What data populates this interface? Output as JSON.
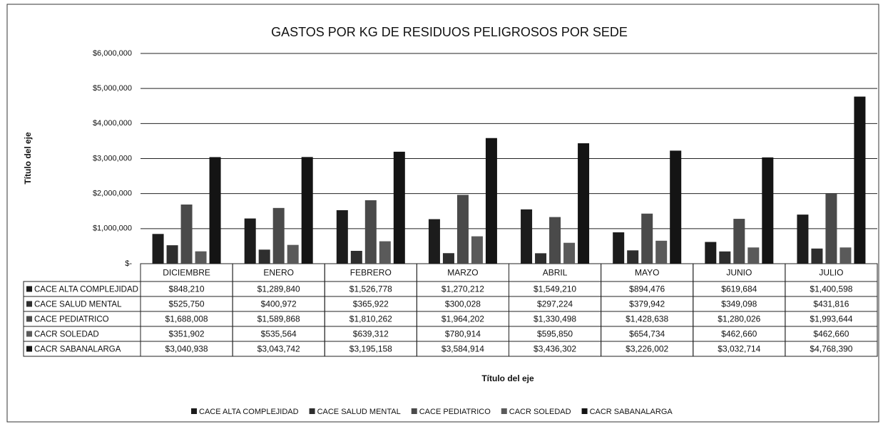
{
  "chart_data": {
    "type": "bar",
    "title": "GASTOS POR KG DE RESIDUOS PELIGROSOS POR SEDE",
    "y_axis_label": "Título del eje",
    "x_axis_label": "Título del eje",
    "categories": [
      "DICIEMBRE",
      "ENERO",
      "FEBRERO",
      "MARZO",
      "ABRIL",
      "MAYO",
      "JUNIO",
      "JULIO"
    ],
    "series": [
      {
        "name": "CACE ALTA COMPLEJIDAD",
        "color": "#1c1c1c",
        "values": [
          848210,
          1289840,
          1526778,
          1270212,
          1549210,
          894476,
          619684,
          1400598
        ],
        "value_labels": [
          "$848,210",
          "$1,289,840",
          "$1,526,778",
          "$1,270,212",
          "$1,549,210",
          "$894,476",
          "$619,684",
          "$1,400,598"
        ]
      },
      {
        "name": "CACE SALUD MENTAL",
        "color": "#2e2e2e",
        "values": [
          525750,
          400972,
          365922,
          300028,
          297224,
          379942,
          349098,
          431816
        ],
        "value_labels": [
          "$525,750",
          "$400,972",
          "$365,922",
          "$300,028",
          "$297,224",
          "$379,942",
          "$349,098",
          "$431,816"
        ]
      },
      {
        "name": "CACE PEDIATRICO",
        "color": "#4a4a4a",
        "values": [
          1688008,
          1589868,
          1810262,
          1964202,
          1330498,
          1428638,
          1280026,
          1993644
        ],
        "value_labels": [
          "$1,688,008",
          "$1,589,868",
          "$1,810,262",
          "$1,964,202",
          "$1,330,498",
          "$1,428,638",
          "$1,280,026",
          "$1,993,644"
        ]
      },
      {
        "name": "CACR SOLEDAD",
        "color": "#5a5a5a",
        "values": [
          351902,
          535564,
          639312,
          780914,
          595850,
          654734,
          462660,
          462660
        ],
        "value_labels": [
          "$351,902",
          "$535,564",
          "$639,312",
          "$780,914",
          "$595,850",
          "$654,734",
          "$462,660",
          "$462,660"
        ]
      },
      {
        "name": "CACR SABANALARGA",
        "color": "#141414",
        "values": [
          3040938,
          3043742,
          3195158,
          3584914,
          3436302,
          3226002,
          3032714,
          4768390
        ],
        "value_labels": [
          "$3,040,938",
          "$3,043,742",
          "$3,195,158",
          "$3,584,914",
          "$3,436,302",
          "$3,226,002",
          "$3,032,714",
          "$4,768,390"
        ]
      }
    ],
    "ylim": [
      0,
      6000000
    ],
    "yticks": [
      {
        "value": 0,
        "label": "$-"
      },
      {
        "value": 1000000,
        "label": "$1,000,000"
      },
      {
        "value": 2000000,
        "label": "$2,000,000"
      },
      {
        "value": 3000000,
        "label": "$3,000,000"
      },
      {
        "value": 4000000,
        "label": "$4,000,000"
      },
      {
        "value": 5000000,
        "label": "$5,000,000"
      },
      {
        "value": 6000000,
        "label": "$6,000,000"
      }
    ],
    "grid": true,
    "legend": "bottom"
  }
}
